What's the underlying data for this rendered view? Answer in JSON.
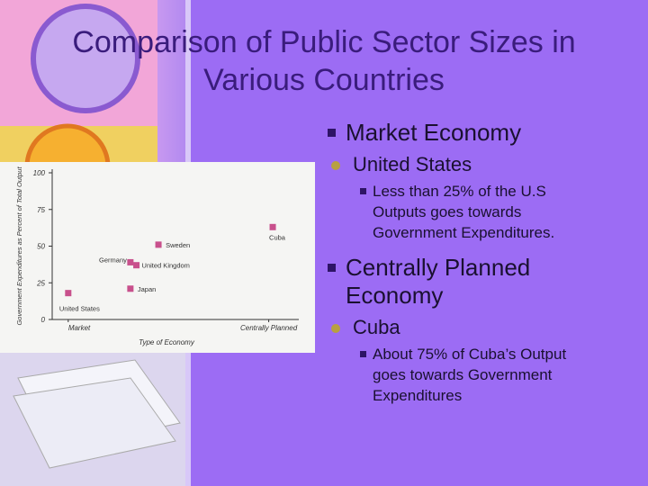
{
  "slide": {
    "title": "Comparison of Public Sector Sizes in Various Countries",
    "bullets": [
      {
        "text": "Market Economy",
        "children": [
          {
            "text": "United States",
            "children": [
              {
                "text": "Less than 25% of the U.S Outputs goes towards Government Expenditures."
              }
            ]
          }
        ]
      },
      {
        "text": "Centrally Planned Economy",
        "children": [
          {
            "text": "Cuba",
            "children": [
              {
                "text": "About 75% of Cuba’s Output goes towards Government Expenditures"
              }
            ]
          }
        ]
      }
    ]
  },
  "chart_data": {
    "type": "scatter",
    "xlabel": "Type of Economy",
    "ylabel": "Government Expenditures as Percent of Total Output",
    "point_labels": [
      "United States",
      "Germany",
      "United Kingdom",
      "Japan",
      "Sweden",
      "Cuba"
    ],
    "x": [
      0,
      0.31,
      0.34,
      0.31,
      0.45,
      1.02
    ],
    "values": [
      18,
      39,
      37,
      21,
      51,
      63
    ],
    "color": "#c8508c",
    "xlim": [
      -0.08,
      1.15
    ],
    "xticks": [
      {
        "value": 0,
        "label": "Market"
      },
      {
        "value": 1,
        "label": "Centrally Planned"
      }
    ],
    "ylim": [
      0,
      100
    ],
    "yticks": [
      0,
      25,
      50,
      75,
      100
    ]
  }
}
